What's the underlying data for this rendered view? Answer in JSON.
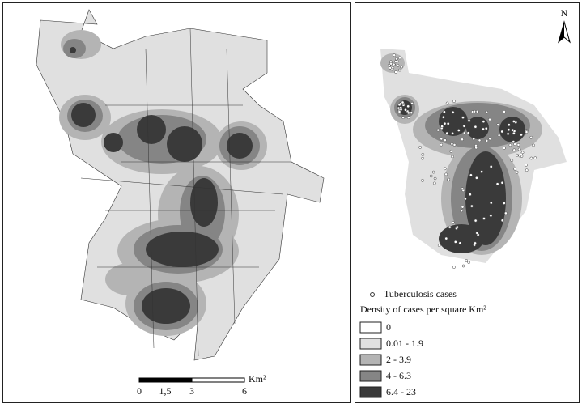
{
  "north": "N",
  "scale_bar": {
    "labels": [
      "0",
      "1,5",
      "3",
      "6"
    ],
    "unit": "Km²"
  },
  "legend": {
    "points_label": "Tuberculosis cases",
    "title": "Density of cases per square Km²",
    "classes": [
      {
        "label": "0",
        "color": "#ffffff"
      },
      {
        "label": "0.01 - 1.9",
        "color": "#e0e0e0"
      },
      {
        "label": "2 - 3.9",
        "color": "#b4b4b4"
      },
      {
        "label": "4 - 6.3",
        "color": "#858585"
      },
      {
        "label": "6.4 - 23",
        "color": "#3a3a3a"
      }
    ]
  }
}
